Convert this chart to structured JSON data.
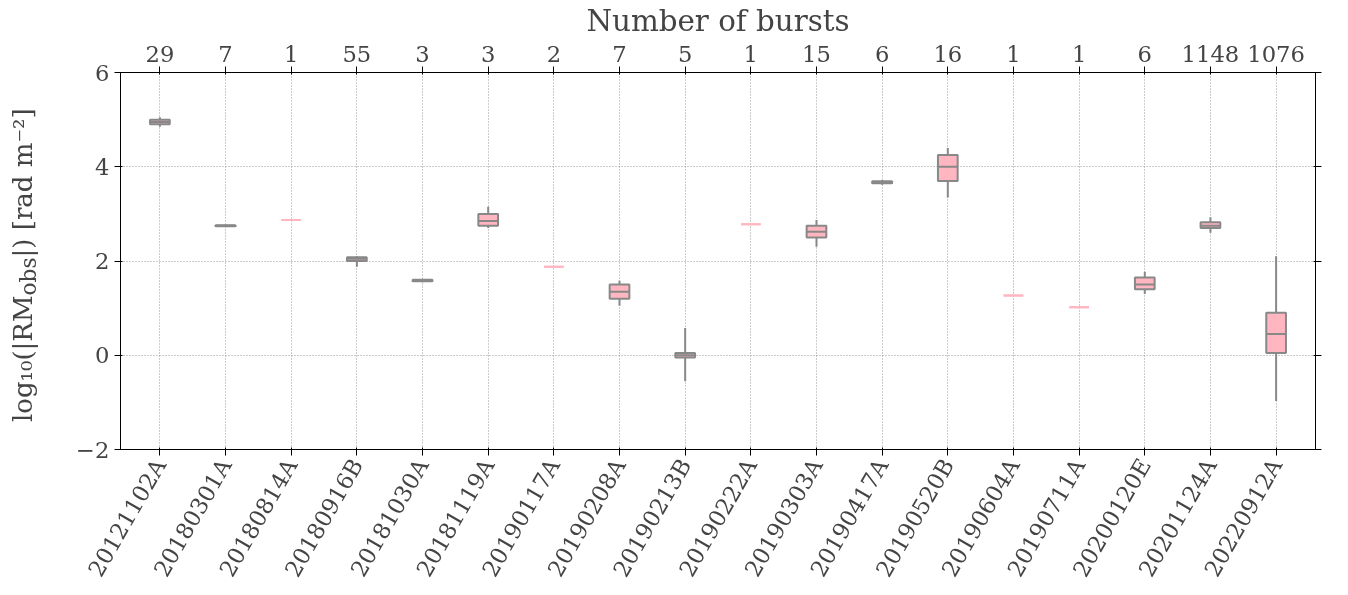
{
  "chart_data": {
    "type": "box",
    "xlabel": null,
    "x2label": "Number of bursts",
    "ylabel": "log₁₀(|RM$_{obs}$|) [rad m⁻²]",
    "categories": [
      "20121102A",
      "20180301A",
      "20180814A",
      "20180916B",
      "20181030A",
      "20181119A",
      "20190117A",
      "20190208A",
      "20190213B",
      "20190222A",
      "20190303A",
      "20190417A",
      "20190520B",
      "20190604A",
      "20190711A",
      "20200120E",
      "20201124A",
      "20220912A"
    ],
    "ylim": [
      -2,
      6
    ],
    "yticks": [
      -2,
      0,
      2,
      4,
      6
    ],
    "grid": true,
    "series": [
      {
        "color": "#ffb6c1",
        "boxes": [
          {
            "low": 4.85,
            "q1": 4.9,
            "median": 4.95,
            "q3": 5.0,
            "high": 5.05
          },
          {
            "low": 2.72,
            "q1": 2.74,
            "median": 2.75,
            "q3": 2.76,
            "high": 2.77
          },
          {
            "low": 2.87,
            "q1": 2.87,
            "median": 2.87,
            "q3": 2.87,
            "high": 2.87
          },
          {
            "low": 1.88,
            "q1": 2.0,
            "median": 2.05,
            "q3": 2.08,
            "high": 2.1
          },
          {
            "low": 1.55,
            "q1": 1.57,
            "median": 1.58,
            "q3": 1.6,
            "high": 1.62
          },
          {
            "low": 2.7,
            "q1": 2.75,
            "median": 2.85,
            "q3": 3.0,
            "high": 3.15
          },
          {
            "low": 1.88,
            "q1": 1.88,
            "median": 1.88,
            "q3": 1.88,
            "high": 1.88
          },
          {
            "low": 1.05,
            "q1": 1.2,
            "median": 1.35,
            "q3": 1.5,
            "high": 1.58
          },
          {
            "low": -0.55,
            "q1": -0.05,
            "median": 0.0,
            "q3": 0.05,
            "high": 0.58
          },
          {
            "low": 2.78,
            "q1": 2.78,
            "median": 2.78,
            "q3": 2.78,
            "high": 2.78
          },
          {
            "low": 2.3,
            "q1": 2.5,
            "median": 2.62,
            "q3": 2.75,
            "high": 2.87
          },
          {
            "low": 3.62,
            "q1": 3.65,
            "median": 3.67,
            "q3": 3.69,
            "high": 3.72
          },
          {
            "low": 3.35,
            "q1": 3.7,
            "median": 4.0,
            "q3": 4.25,
            "high": 4.4
          },
          {
            "low": 1.27,
            "q1": 1.27,
            "median": 1.27,
            "q3": 1.27,
            "high": 1.27
          },
          {
            "low": 1.02,
            "q1": 1.02,
            "median": 1.02,
            "q3": 1.02,
            "high": 1.02
          },
          {
            "low": 1.3,
            "q1": 1.4,
            "median": 1.5,
            "q3": 1.65,
            "high": 1.77
          },
          {
            "low": 2.6,
            "q1": 2.7,
            "median": 2.75,
            "q3": 2.82,
            "high": 2.93
          },
          {
            "low": -0.97,
            "q1": 0.05,
            "median": 0.45,
            "q3": 0.9,
            "high": 2.1
          }
        ]
      }
    ],
    "annotations": [
      {
        "text": "29",
        "x": "20121102A"
      },
      {
        "text": "7",
        "x": "20180301A"
      },
      {
        "text": "1",
        "x": "20180814A"
      },
      {
        "text": "55",
        "x": "20180916B"
      },
      {
        "text": "3",
        "x": "20181030A"
      },
      {
        "text": "3",
        "x": "20181119A"
      },
      {
        "text": "2",
        "x": "20190117A"
      },
      {
        "text": "7",
        "x": "20190208A"
      },
      {
        "text": "5",
        "x": "20190213B"
      },
      {
        "text": "1",
        "x": "20190222A"
      },
      {
        "text": "15",
        "x": "20190303A"
      },
      {
        "text": "6",
        "x": "20190417A"
      },
      {
        "text": "16",
        "x": "20190520B"
      },
      {
        "text": "1",
        "x": "20190604A"
      },
      {
        "text": "1",
        "x": "20190711A"
      },
      {
        "text": "6",
        "x": "20200120E"
      },
      {
        "text": "1148",
        "x": "20201124A"
      },
      {
        "text": "1076",
        "x": "20220912A"
      }
    ]
  }
}
